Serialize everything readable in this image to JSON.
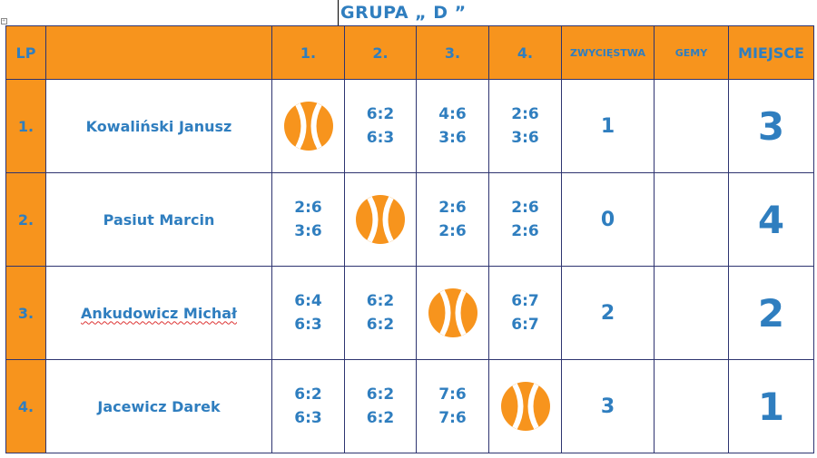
{
  "title": "GRUPA „ D ”",
  "accent_color": "#F7941D",
  "text_color": "#2F7EBF",
  "headers": {
    "lp": "LP",
    "opponents": [
      "1.",
      "2.",
      "3.",
      "4."
    ],
    "wins": "ZWYCIĘSTWA",
    "games": "GEMY",
    "place": "MIEJSCE"
  },
  "rows": [
    {
      "lp": "1.",
      "name": "Kowaliński Janusz",
      "results": [
        {
          "self": true,
          "icon": "tennis-ball-icon"
        },
        {
          "top": "6:2",
          "bottom": "6:3"
        },
        {
          "top": "4:6",
          "bottom": "3:6"
        },
        {
          "top": "2:6",
          "bottom": "3:6"
        }
      ],
      "wins": "1",
      "games": "",
      "place": "3"
    },
    {
      "lp": "2.",
      "name": "Pasiut Marcin",
      "results": [
        {
          "top": "2:6",
          "bottom": "3:6"
        },
        {
          "self": true,
          "icon": "tennis-ball-icon"
        },
        {
          "top": "2:6",
          "bottom": "2:6"
        },
        {
          "top": "2:6",
          "bottom": "2:6"
        }
      ],
      "wins": "0",
      "games": "",
      "place": "4"
    },
    {
      "lp": "3.",
      "name": "Ankudowicz Michał",
      "results": [
        {
          "top": "6:4",
          "bottom": "6:3"
        },
        {
          "top": "6:2",
          "bottom": "6:2"
        },
        {
          "self": true,
          "icon": "tennis-ball-icon"
        },
        {
          "top": "6:7",
          "bottom": "6:7"
        }
      ],
      "wins": "2",
      "games": "",
      "place": "2"
    },
    {
      "lp": "4.",
      "name": "Jacewicz Darek",
      "results": [
        {
          "top": "6:2",
          "bottom": "6:3"
        },
        {
          "top": "6:2",
          "bottom": "6:2"
        },
        {
          "top": "7:6",
          "bottom": "7:6"
        },
        {
          "self": true,
          "icon": "tennis-ball-icon"
        }
      ],
      "wins": "3",
      "games": "",
      "place": "1"
    }
  ]
}
